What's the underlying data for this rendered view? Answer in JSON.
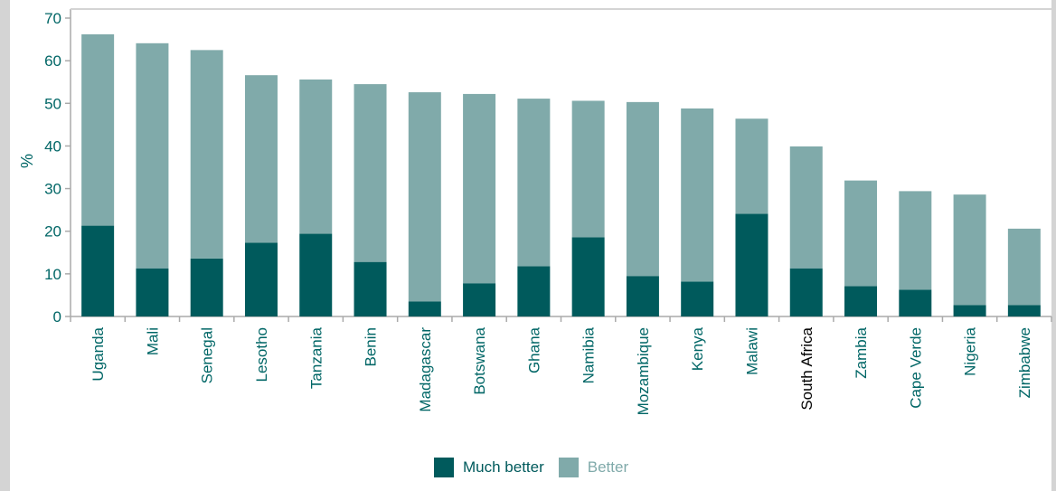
{
  "chart_data": {
    "type": "bar",
    "stacked": true,
    "ylabel": "%",
    "ylim": [
      0,
      70
    ],
    "yticks": [
      0,
      10,
      20,
      30,
      40,
      50,
      60,
      70
    ],
    "grid": false,
    "legend_position": "bottom",
    "categories": [
      "Uganda",
      "Mali",
      "Senegal",
      "Lesotho",
      "Tanzania",
      "Benin",
      "Madagascar",
      "Botswana",
      "Ghana",
      "Namibia",
      "Mozambique",
      "Kenya",
      "Malawi",
      "South Africa",
      "Zambia",
      "Cape Verde",
      "Nigeria",
      "Zimbabwe"
    ],
    "series": [
      {
        "name": "Much better",
        "color": "#005a5c",
        "values": [
          21.3,
          11.3,
          13.6,
          17.3,
          19.4,
          12.8,
          3.5,
          7.8,
          11.8,
          18.6,
          9.5,
          8.2,
          24.1,
          11.3,
          7.1,
          6.3,
          2.7,
          2.7
        ]
      },
      {
        "name": "Better",
        "color": "#80aaaa",
        "values": [
          44.9,
          52.8,
          48.9,
          39.3,
          36.2,
          41.7,
          49.1,
          44.4,
          39.3,
          32.0,
          40.8,
          40.6,
          22.3,
          28.6,
          24.8,
          23.1,
          25.9,
          17.9
        ]
      }
    ]
  },
  "colors": {
    "axis": "#aaaaaa",
    "label_text": "#006666",
    "highlight_label": "#000000"
  }
}
